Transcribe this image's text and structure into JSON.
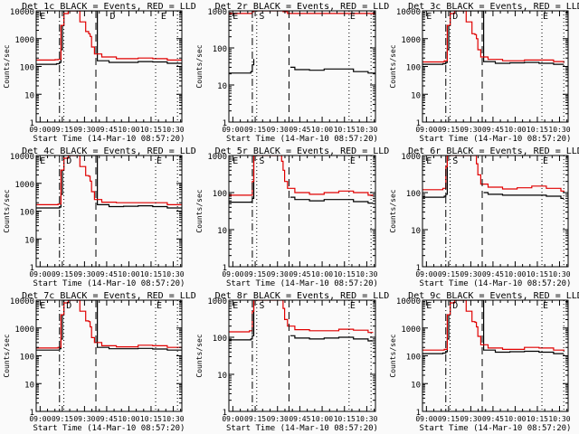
{
  "chart_data": [
    {
      "type": "line",
      "title": "Det 1c BLACK = Events, RED = LLD",
      "xlabel": "Start Time (14-Mar-10 08:57:20)",
      "ylabel": "Counts/sec",
      "xticks": [
        "09:00",
        "09:15",
        "09:30",
        "09:45",
        "10:00",
        "10:15",
        "10:30"
      ],
      "yticks": [
        "1",
        "10",
        "100",
        "1000",
        "10000"
      ],
      "ylim": [
        1,
        10000
      ],
      "yscale": "log",
      "markers": [
        {
          "label": "E",
          "pos": 0.02
        },
        {
          "label": "D",
          "pos": 0.5
        },
        {
          "label": "E",
          "pos": 0.85
        }
      ],
      "series": [
        {
          "name": "Events",
          "color": "#000000",
          "x": [
            0,
            0.14,
            0.16,
            0.17,
            0.18,
            0.19,
            0.2,
            0.41,
            0.42,
            0.5,
            0.6,
            0.7,
            0.8,
            0.9,
            1.0
          ],
          "y": [
            120,
            125,
            140,
            400,
            3000,
            10000,
            10000,
            10000,
            160,
            140,
            140,
            150,
            145,
            130,
            120
          ]
        },
        {
          "name": "LLD",
          "color": "#e00000",
          "x": [
            0,
            0.13,
            0.15,
            0.17,
            0.19,
            0.22,
            0.27,
            0.3,
            0.34,
            0.36,
            0.37,
            0.38,
            0.4,
            0.45,
            0.55,
            0.7,
            0.8,
            0.9,
            1.0
          ],
          "y": [
            170,
            175,
            180,
            3000,
            8000,
            10000,
            10000,
            4000,
            1800,
            1500,
            1200,
            500,
            280,
            220,
            190,
            200,
            190,
            170,
            160
          ]
        }
      ]
    },
    {
      "type": "line",
      "title": "Det 2r BLACK = Events, RED = LLD",
      "xlabel": "Start Time (14-Mar-10 08:57:20)",
      "ylabel": "Counts/sec",
      "xticks": [
        "09:00",
        "09:15",
        "09:30",
        "09:45",
        "10:00",
        "10:15",
        "10:30"
      ],
      "yticks": [
        "1",
        "10",
        "100",
        "1000"
      ],
      "ylim": [
        1,
        1000
      ],
      "yscale": "log",
      "markers": [
        {
          "label": "E",
          "pos": 0.02
        },
        {
          "label": "S",
          "pos": 0.2
        },
        {
          "label": "E",
          "pos": 0.82
        }
      ],
      "series": [
        {
          "name": "Events",
          "color": "#000000",
          "x": [
            0,
            0.05,
            0.1,
            0.15,
            0.16,
            0.17,
            0.41,
            0.42,
            0.45,
            0.55,
            0.65,
            0.75,
            0.85,
            0.95,
            1.0
          ],
          "y": [
            21,
            21,
            21,
            23,
            35,
            50,
            null,
            30,
            26,
            25,
            27,
            27,
            23,
            21,
            20
          ]
        },
        {
          "name": "LLD",
          "color": "#e00000",
          "x": [
            0,
            0.15,
            0.16,
            0.17,
            0.35,
            0.37,
            0.4,
            0.5,
            0.7,
            0.9,
            1.0
          ],
          "y": [
            850,
            850,
            950,
            1000,
            1000,
            950,
            850,
            850,
            850,
            850,
            850
          ]
        }
      ]
    },
    {
      "type": "line",
      "title": "Det 3c BLACK = Events, RED = LLD",
      "xlabel": "Start Time (14-Mar-10 08:57:20)",
      "ylabel": "Counts/sec",
      "xticks": [
        "09:00",
        "09:15",
        "09:30",
        "09:45",
        "10:00",
        "10:15",
        "10:30"
      ],
      "yticks": [
        "1",
        "10",
        "100",
        "1000",
        "10000"
      ],
      "ylim": [
        1,
        10000
      ],
      "yscale": "log",
      "markers": [
        {
          "label": "E",
          "pos": 0.02
        },
        {
          "label": "D",
          "pos": 0.2
        },
        {
          "label": "E",
          "pos": 0.82
        }
      ],
      "series": [
        {
          "name": "Events",
          "color": "#000000",
          "x": [
            0,
            0.14,
            0.16,
            0.17,
            0.18,
            0.19,
            0.2,
            0.41,
            0.42,
            0.5,
            0.6,
            0.7,
            0.8,
            0.9,
            0.97
          ],
          "y": [
            120,
            125,
            140,
            400,
            3000,
            10000,
            10000,
            10000,
            150,
            130,
            135,
            140,
            130,
            120,
            120
          ]
        },
        {
          "name": "LLD",
          "color": "#e00000",
          "x": [
            0,
            0.13,
            0.15,
            0.17,
            0.19,
            0.22,
            0.27,
            0.3,
            0.34,
            0.36,
            0.37,
            0.38,
            0.4,
            0.45,
            0.55,
            0.7,
            0.8,
            0.9,
            0.97
          ],
          "y": [
            145,
            145,
            160,
            3000,
            8000,
            10000,
            10000,
            4000,
            1500,
            1400,
            1000,
            400,
            220,
            180,
            160,
            170,
            170,
            150,
            135
          ]
        }
      ]
    },
    {
      "type": "line",
      "title": "Det 4c BLACK = Events, RED = LLD",
      "xlabel": "Start Time (14-Mar-10 08:57:20)",
      "ylabel": "Counts/sec",
      "xticks": [
        "09:00",
        "09:15",
        "09:30",
        "09:45",
        "10:00",
        "10:15",
        "10:30"
      ],
      "yticks": [
        "1",
        "10",
        "100",
        "1000",
        "10000"
      ],
      "ylim": [
        1,
        10000
      ],
      "yscale": "log",
      "markers": [
        {
          "label": "E",
          "pos": 0.02
        },
        {
          "label": "D",
          "pos": 0.2
        },
        {
          "label": "E",
          "pos": 0.82
        }
      ],
      "series": [
        {
          "name": "Events",
          "color": "#000000",
          "x": [
            0,
            0.14,
            0.16,
            0.17,
            0.18,
            0.19,
            0.2,
            0.41,
            0.42,
            0.5,
            0.6,
            0.7,
            0.8,
            0.9,
            1.0
          ],
          "y": [
            130,
            130,
            140,
            400,
            3000,
            10000,
            10000,
            10000,
            170,
            145,
            150,
            155,
            145,
            130,
            120
          ]
        },
        {
          "name": "LLD",
          "color": "#e00000",
          "x": [
            0,
            0.13,
            0.15,
            0.17,
            0.19,
            0.22,
            0.27,
            0.3,
            0.34,
            0.36,
            0.37,
            0.38,
            0.4,
            0.45,
            0.55,
            0.7,
            0.8,
            0.9,
            1.0
          ],
          "y": [
            170,
            170,
            180,
            3000,
            8000,
            10000,
            10000,
            4000,
            1900,
            1800,
            1200,
            500,
            260,
            210,
            200,
            200,
            200,
            170,
            160
          ]
        }
      ]
    },
    {
      "type": "line",
      "title": "Det 5r BLACK = Events, RED = LLD",
      "xlabel": "Start Time (14-Mar-10 08:57:20)",
      "ylabel": "Counts/sec",
      "xticks": [
        "09:00",
        "09:15",
        "09:30",
        "09:45",
        "10:00",
        "10:15",
        "10:30"
      ],
      "yticks": [
        "1",
        "10",
        "100",
        "1000"
      ],
      "ylim": [
        1,
        1000
      ],
      "yscale": "log",
      "markers": [
        {
          "label": "E",
          "pos": 0.02
        },
        {
          "label": "S",
          "pos": 0.2
        },
        {
          "label": "E",
          "pos": 0.82
        }
      ],
      "series": [
        {
          "name": "Events",
          "color": "#000000",
          "x": [
            0,
            0.1,
            0.15,
            0.16,
            0.17,
            0.41,
            0.42,
            0.45,
            0.55,
            0.65,
            0.75,
            0.85,
            0.95,
            0.98
          ],
          "y": [
            55,
            55,
            56,
            70,
            1000,
            null,
            75,
            65,
            60,
            65,
            65,
            57,
            52,
            50
          ]
        },
        {
          "name": "LLD",
          "color": "#e00000",
          "x": [
            0,
            0.1,
            0.14,
            0.16,
            0.17,
            0.32,
            0.36,
            0.37,
            0.38,
            0.4,
            0.45,
            0.55,
            0.65,
            0.75,
            0.85,
            0.95,
            0.98
          ],
          "y": [
            85,
            85,
            85,
            200,
            1000,
            1000,
            700,
            400,
            200,
            130,
            100,
            90,
            100,
            110,
            100,
            85,
            80
          ]
        }
      ]
    },
    {
      "type": "line",
      "title": "Det 6r BLACK = Events, RED = LLD",
      "xlabel": "Start Time (14-Mar-10 08:57:20)",
      "ylabel": "Counts/sec",
      "xticks": [
        "09:00",
        "09:15",
        "09:30",
        "09:45",
        "10:00",
        "10:15",
        "10:30"
      ],
      "yticks": [
        "1",
        "10",
        "100",
        "1000"
      ],
      "ylim": [
        1,
        1000
      ],
      "yscale": "log",
      "markers": [
        {
          "label": "E",
          "pos": 0.02
        },
        {
          "label": "S",
          "pos": 0.2
        },
        {
          "label": "E",
          "pos": 0.82
        }
      ],
      "series": [
        {
          "name": "Events",
          "color": "#000000",
          "x": [
            0,
            0.1,
            0.15,
            0.16,
            0.17,
            0.41,
            0.42,
            0.45,
            0.55,
            0.65,
            0.75,
            0.85,
            0.95,
            0.97
          ],
          "y": [
            75,
            75,
            80,
            90,
            1000,
            null,
            100,
            90,
            85,
            85,
            85,
            80,
            70,
            70
          ]
        },
        {
          "name": "LLD",
          "color": "#e00000",
          "x": [
            0,
            0.1,
            0.14,
            0.16,
            0.17,
            0.36,
            0.37,
            0.38,
            0.4,
            0.45,
            0.55,
            0.65,
            0.75,
            0.85,
            0.95,
            0.97
          ],
          "y": [
            120,
            120,
            130,
            500,
            1000,
            1000,
            600,
            300,
            170,
            140,
            125,
            135,
            150,
            130,
            110,
            105
          ]
        }
      ]
    },
    {
      "type": "line",
      "title": "Det 7c BLACK = Events, RED = LLD",
      "xlabel": "Start Time (14-Mar-10 08:57:20)",
      "ylabel": "Counts/sec",
      "xticks": [
        "09:00",
        "09:15",
        "09:30",
        "09:45",
        "10:00",
        "10:15",
        "10:30"
      ],
      "yticks": [
        "1",
        "10",
        "100",
        "1000",
        "10000"
      ],
      "ylim": [
        1,
        10000
      ],
      "yscale": "log",
      "markers": [
        {
          "label": "E",
          "pos": 0.02
        },
        {
          "label": "D",
          "pos": 0.2
        },
        {
          "label": "E",
          "pos": 0.82
        }
      ],
      "series": [
        {
          "name": "Events",
          "color": "#000000",
          "x": [
            0,
            0.14,
            0.16,
            0.17,
            0.18,
            0.19,
            0.2,
            0.41,
            0.42,
            0.5,
            0.6,
            0.7,
            0.8,
            0.9,
            1.0
          ],
          "y": [
            160,
            160,
            180,
            400,
            3000,
            10000,
            10000,
            10000,
            200,
            180,
            180,
            185,
            175,
            160,
            150
          ]
        },
        {
          "name": "LLD",
          "color": "#e00000",
          "x": [
            0,
            0.13,
            0.15,
            0.17,
            0.19,
            0.22,
            0.27,
            0.3,
            0.34,
            0.36,
            0.37,
            0.38,
            0.4,
            0.45,
            0.55,
            0.7,
            0.8,
            0.9,
            1.0
          ],
          "y": [
            190,
            190,
            200,
            3000,
            8000,
            10000,
            10000,
            4000,
            1800,
            1700,
            1100,
            450,
            300,
            230,
            210,
            240,
            230,
            200,
            180
          ]
        }
      ]
    },
    {
      "type": "line",
      "title": "Det 8r BLACK = Events, RED = LLD",
      "xlabel": "Start Time (14-Mar-10 08:57:20)",
      "ylabel": "Counts/sec",
      "xticks": [
        "09:00",
        "09:15",
        "09:30",
        "09:45",
        "10:00",
        "10:15",
        "10:30"
      ],
      "yticks": [
        "1",
        "10",
        "100",
        "1000"
      ],
      "ylim": [
        1,
        1000
      ],
      "yscale": "log",
      "markers": [
        {
          "label": "E",
          "pos": 0.02
        },
        {
          "label": "S",
          "pos": 0.2
        },
        {
          "label": "E",
          "pos": 0.82
        }
      ],
      "series": [
        {
          "name": "Events",
          "color": "#000000",
          "x": [
            0,
            0.1,
            0.15,
            0.16,
            0.17,
            0.41,
            0.42,
            0.45,
            0.55,
            0.65,
            0.75,
            0.85,
            0.95,
            0.98
          ],
          "y": [
            85,
            85,
            90,
            110,
            1000,
            null,
            110,
            95,
            90,
            95,
            100,
            90,
            80,
            78
          ]
        },
        {
          "name": "LLD",
          "color": "#e00000",
          "x": [
            0,
            0.1,
            0.14,
            0.16,
            0.17,
            0.36,
            0.37,
            0.38,
            0.4,
            0.45,
            0.55,
            0.65,
            0.75,
            0.85,
            0.95,
            0.98
          ],
          "y": [
            140,
            140,
            150,
            500,
            1000,
            1000,
            600,
            300,
            200,
            160,
            150,
            150,
            165,
            155,
            135,
            130
          ]
        }
      ]
    },
    {
      "type": "line",
      "title": "Det 9c BLACK = Events, RED = LLD",
      "xlabel": "Start Time (14-Mar-10 08:57:20)",
      "ylabel": "Counts/sec",
      "xticks": [
        "09:00",
        "09:15",
        "09:30",
        "09:45",
        "10:00",
        "10:15",
        "10:30"
      ],
      "yticks": [
        "1",
        "10",
        "100",
        "1000",
        "10000"
      ],
      "ylim": [
        1,
        10000
      ],
      "yscale": "log",
      "markers": [
        {
          "label": "E",
          "pos": 0.02
        },
        {
          "label": "D",
          "pos": 0.2
        },
        {
          "label": "E",
          "pos": 0.82
        }
      ],
      "series": [
        {
          "name": "Events",
          "color": "#000000",
          "x": [
            0,
            0.14,
            0.16,
            0.17,
            0.18,
            0.19,
            0.2,
            0.41,
            0.42,
            0.5,
            0.6,
            0.7,
            0.8,
            0.9,
            0.97
          ],
          "y": [
            120,
            125,
            140,
            400,
            3000,
            10000,
            10000,
            10000,
            160,
            135,
            140,
            145,
            135,
            120,
            120
          ]
        },
        {
          "name": "LLD",
          "color": "#e00000",
          "x": [
            0,
            0.13,
            0.15,
            0.17,
            0.19,
            0.22,
            0.27,
            0.3,
            0.34,
            0.36,
            0.37,
            0.38,
            0.4,
            0.45,
            0.55,
            0.7,
            0.8,
            0.9,
            0.97
          ],
          "y": [
            160,
            160,
            170,
            3000,
            8000,
            10000,
            10000,
            4000,
            1700,
            1600,
            1100,
            500,
            250,
            190,
            170,
            200,
            190,
            160,
            150
          ]
        }
      ]
    }
  ]
}
